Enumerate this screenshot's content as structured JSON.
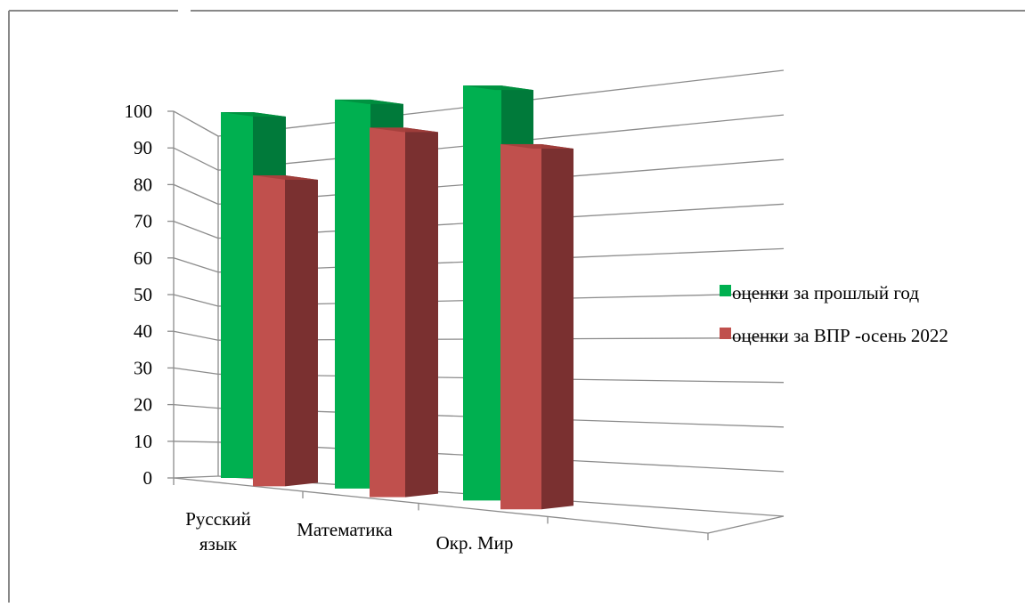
{
  "chart_data": {
    "type": "bar",
    "title": "",
    "xlabel": "",
    "ylabel": "",
    "ylim": [
      0,
      100
    ],
    "yticks": [
      "0",
      "10",
      "20",
      "30",
      "40",
      "50",
      "60",
      "70",
      "80",
      "90",
      "100"
    ],
    "categories": [
      "Русский язык",
      "Математика",
      "Окр. Мир"
    ],
    "series": [
      {
        "name": "оценки за прошлый год",
        "values": [
          100,
          100,
          100
        ],
        "color": "#00b050",
        "side_color": "#007a3a",
        "top_color": "#00903f"
      },
      {
        "name": "оценки за ВПР -осень 2022",
        "values": [
          85,
          95,
          88
        ],
        "color": "#c0504d",
        "side_color": "#7a3030",
        "top_color": "#a33f3c"
      }
    ],
    "grid": true,
    "legend_position": "right",
    "style": "3d-clustered-column"
  }
}
